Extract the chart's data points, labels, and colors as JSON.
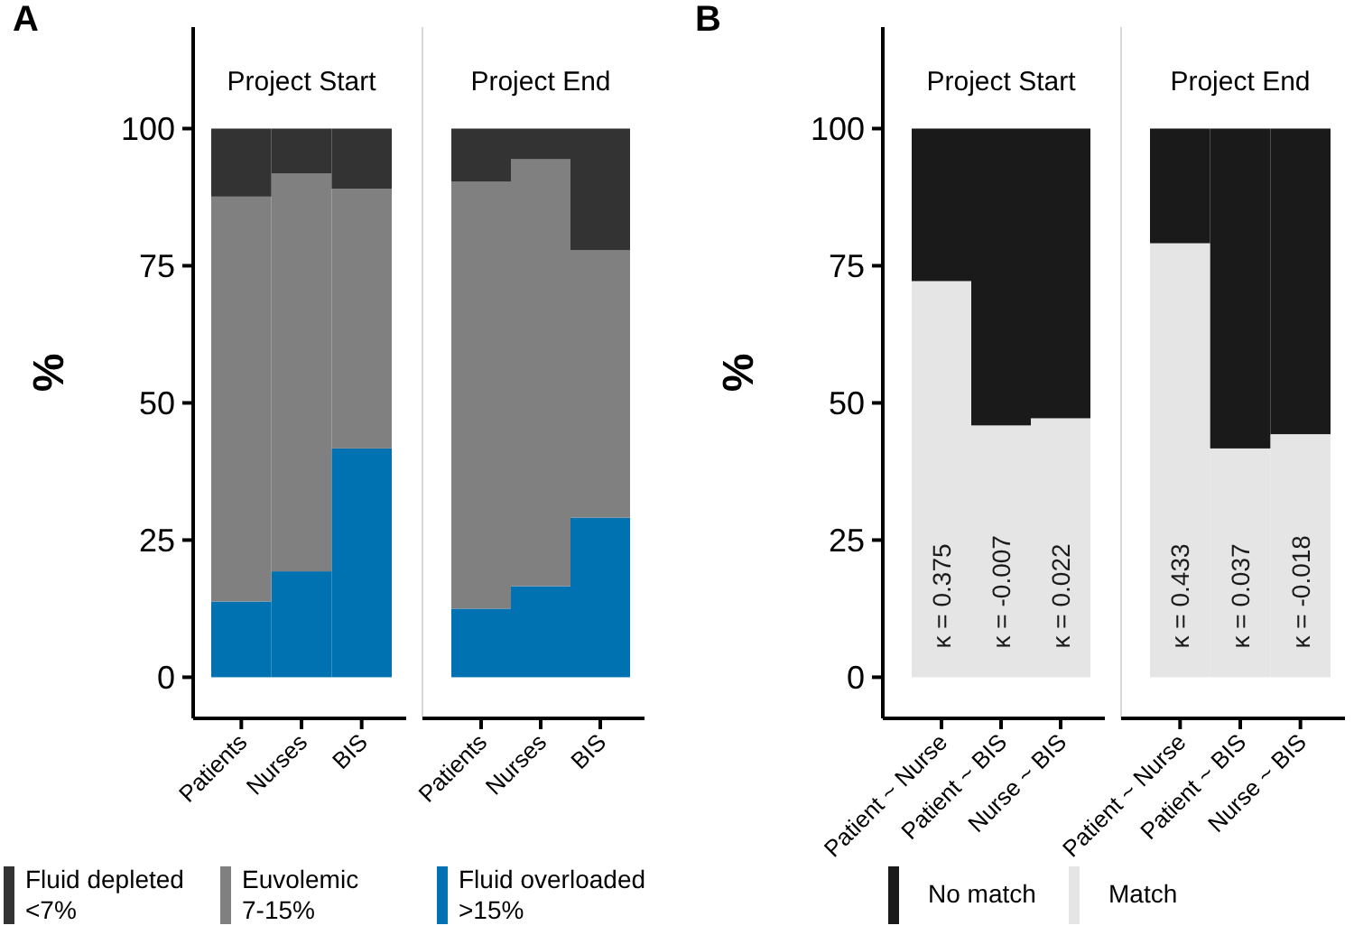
{
  "chart_data": [
    {
      "type": "bar",
      "stacked": true,
      "title": "Project Start",
      "ylabel": "%",
      "annotations": [
        "A"
      ],
      "categories": [
        "Patients",
        "Nurses",
        "BIS"
      ],
      "ylim": [
        -7.5,
        118.5
      ],
      "yticks": [
        0,
        25,
        50,
        75,
        100
      ],
      "legend": "bottom",
      "series": [
        {
          "name": "Fluid overloaded >15%",
          "color": "#0072b2",
          "values": [
            13.8,
            19.3,
            41.7
          ]
        },
        {
          "name": "Euvolemic 7-15%",
          "color": "#808080",
          "values": [
            73.8,
            72.5,
            47.3
          ]
        },
        {
          "name": "Fluid depleted <7%",
          "color": "#333333",
          "values": [
            12.4,
            8.2,
            11.0
          ]
        }
      ]
    },
    {
      "type": "bar",
      "stacked": true,
      "title": "Project End",
      "categories": [
        "Patients",
        "Nurses",
        "BIS"
      ],
      "ylim": [
        -7.5,
        118.5
      ],
      "yticks": [
        0,
        25,
        50,
        75,
        100
      ],
      "tick_labels": "x",
      "series": [
        {
          "color": "#0072b2",
          "values": [
            12.5,
            16.6,
            29.1
          ]
        },
        {
          "color": "#808080",
          "values": [
            77.8,
            77.8,
            48.7
          ]
        },
        {
          "color": "#333333",
          "values": [
            9.7,
            5.6,
            22.2
          ]
        }
      ]
    },
    {
      "type": "bar",
      "stacked": true,
      "title": "Project Start",
      "ylabel": "%",
      "annotations": [
        "B",
        "κ = 0.375",
        "κ = -0.007",
        "κ = 0.022"
      ],
      "categories": [
        "Patient ~ Nurse",
        "Patient ~ BIS",
        "Nurse ~ BIS"
      ],
      "ylim": [
        -7.5,
        118.5
      ],
      "yticks": [
        0,
        25,
        50,
        75,
        100
      ],
      "legend": "bottom",
      "series": [
        {
          "name": "Match",
          "color": "#e5e5e5",
          "values": [
            72.2,
            45.9,
            47.2
          ]
        },
        {
          "name": "No match",
          "color": "#1a1a1a",
          "values": [
            27.8,
            54.1,
            52.8
          ]
        }
      ]
    },
    {
      "type": "bar",
      "stacked": true,
      "title": "Project End",
      "annotations": [
        "κ = 0.433",
        "κ = 0.037",
        "κ = -0.018"
      ],
      "categories": [
        "Patient ~ Nurse",
        "Patient ~ BIS",
        "Nurse ~ BIS"
      ],
      "ylim": [
        -7.5,
        118.5
      ],
      "yticks": [
        0,
        25,
        50,
        75,
        100
      ],
      "tick_labels": "x",
      "series": [
        {
          "color": "#e5e5e5",
          "values": [
            79.1,
            41.7,
            44.3
          ]
        },
        {
          "color": "#1a1a1a",
          "values": [
            20.9,
            58.3,
            55.7
          ]
        }
      ]
    }
  ]
}
